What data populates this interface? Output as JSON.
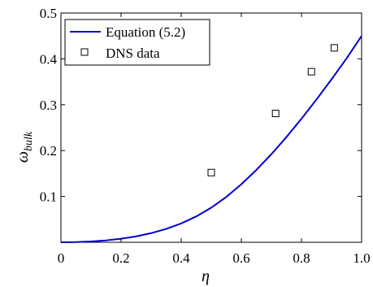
{
  "chart_data": {
    "type": "line",
    "xlabel": "η",
    "ylabel_main": "ω",
    "ylabel_sub": "bulk",
    "xlim": [
      0,
      1.0
    ],
    "ylim": [
      0,
      0.5
    ],
    "x_ticks": [
      {
        "value": 0,
        "label": "0"
      },
      {
        "value": 0.2,
        "label": "0.2"
      },
      {
        "value": 0.4,
        "label": "0.4"
      },
      {
        "value": 0.6,
        "label": "0.6"
      },
      {
        "value": 0.8,
        "label": "0.8"
      },
      {
        "value": 1.0,
        "label": "1.0"
      }
    ],
    "y_ticks": [
      {
        "value": 0.1,
        "label": "0.1"
      },
      {
        "value": 0.2,
        "label": "0.2"
      },
      {
        "value": 0.3,
        "label": "0.3"
      },
      {
        "value": 0.4,
        "label": "0.4"
      },
      {
        "value": 0.5,
        "label": "0.5"
      }
    ],
    "grid": false,
    "legend_position": "top-left",
    "series": [
      {
        "name": "Equation (5.2)",
        "kind": "line",
        "color": "#0000cc",
        "x": [
          0,
          0.05,
          0.1,
          0.15,
          0.2,
          0.25,
          0.3,
          0.35,
          0.4,
          0.45,
          0.5,
          0.55,
          0.6,
          0.65,
          0.7,
          0.75,
          0.8,
          0.85,
          0.9,
          0.95,
          1.0
        ],
        "y": [
          0,
          0.0004,
          0.0017,
          0.0041,
          0.0077,
          0.0128,
          0.0199,
          0.0291,
          0.0411,
          0.0564,
          0.0755,
          0.099,
          0.1266,
          0.1578,
          0.1922,
          0.2295,
          0.2694,
          0.3115,
          0.3555,
          0.401,
          0.45
        ]
      },
      {
        "name": "DNS data",
        "kind": "marker",
        "marker": "square",
        "color": "#000000",
        "x": [
          0.5,
          0.714,
          0.833,
          0.909
        ],
        "y": [
          0.152,
          0.281,
          0.372,
          0.424
        ]
      }
    ]
  }
}
